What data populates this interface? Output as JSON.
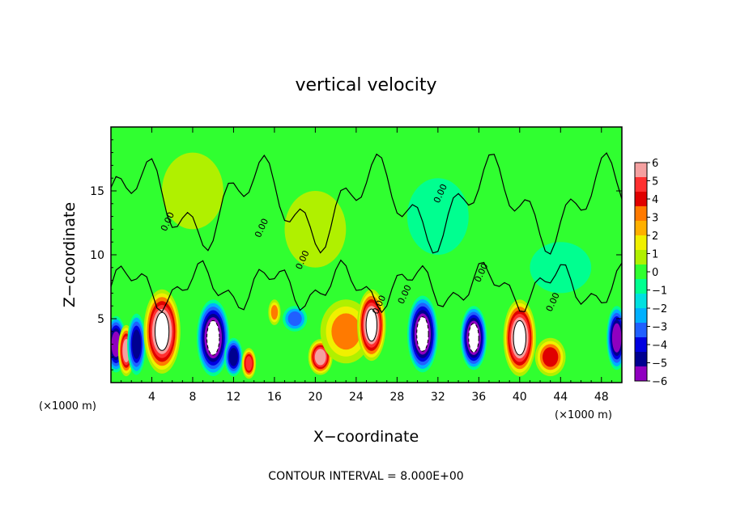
{
  "chart_data": {
    "type": "heatmap",
    "title": "vertical velocity",
    "xlabel": "X−coordinate",
    "ylabel": "Z−coordinate",
    "x_unit_left": "(×1000 m)",
    "x_unit_right": "(×1000 m)",
    "xlim": [
      0,
      50
    ],
    "ylim": [
      0,
      20
    ],
    "x_ticks": [
      4,
      8,
      12,
      16,
      20,
      24,
      28,
      32,
      36,
      40,
      44,
      48
    ],
    "y_ticks": [
      5,
      10,
      15
    ],
    "colorbar": {
      "min": -6,
      "max": 6,
      "ticks": [
        6,
        5,
        4,
        3,
        2,
        1,
        0,
        -1,
        -2,
        -3,
        -4,
        -5,
        -6
      ],
      "tick_labels": [
        "6",
        "5",
        "4",
        "3",
        "2",
        "1",
        "0",
        "−1",
        "−2",
        "−3",
        "−4",
        "−5",
        "−6"
      ],
      "colors": [
        "#f4a0a0",
        "#ff3030",
        "#e00000",
        "#ff7a00",
        "#ffb000",
        "#f0f000",
        "#b0f000",
        "#30ff30",
        "#00ff90",
        "#00e0e0",
        "#00b0ff",
        "#2060ff",
        "#0000e0",
        "#000090",
        "#9000c0"
      ]
    },
    "contour_labels": [
      "0.00",
      "0.00",
      "0.00",
      "0.00",
      "0.00",
      "0.00",
      "0.00",
      "0.00"
    ],
    "footer": "CONTOUR INTERVAL = 8.000E+00",
    "cells": [
      {
        "x": 0.5,
        "z": 3,
        "v": -6,
        "sx": 1.0,
        "sz": 2.2
      },
      {
        "x": 1.5,
        "z": 2.5,
        "v": 6,
        "sx": 0.8,
        "sz": 2.0
      },
      {
        "x": 2.5,
        "z": 3,
        "v": -5,
        "sx": 0.9,
        "sz": 2.4
      },
      {
        "x": 5,
        "z": 4,
        "v": 6.5,
        "sx": 1.8,
        "sz": 3.3
      },
      {
        "x": 10,
        "z": 3.5,
        "v": -6.5,
        "sx": 1.6,
        "sz": 3.0
      },
      {
        "x": 12,
        "z": 2,
        "v": -4.5,
        "sx": 0.9,
        "sz": 1.5
      },
      {
        "x": 13.5,
        "z": 1.5,
        "v": 4.5,
        "sx": 0.7,
        "sz": 1.2
      },
      {
        "x": 16,
        "z": 5.5,
        "v": 3,
        "sx": 0.6,
        "sz": 1.0
      },
      {
        "x": 18,
        "z": 5,
        "v": -2.5,
        "sx": 1.2,
        "sz": 1.0
      },
      {
        "x": 20.5,
        "z": 2,
        "v": 5.5,
        "sx": 1.2,
        "sz": 1.4
      },
      {
        "x": 23,
        "z": 4,
        "v": 3,
        "sx": 2.5,
        "sz": 2.5
      },
      {
        "x": 25.5,
        "z": 4.5,
        "v": 6.5,
        "sx": 1.4,
        "sz": 2.8
      },
      {
        "x": 30.5,
        "z": 3.8,
        "v": -6.5,
        "sx": 1.5,
        "sz": 3.0
      },
      {
        "x": 35.5,
        "z": 3.5,
        "v": -6.5,
        "sx": 1.3,
        "sz": 2.5
      },
      {
        "x": 40,
        "z": 3.5,
        "v": 6.5,
        "sx": 1.6,
        "sz": 3.0
      },
      {
        "x": 43,
        "z": 2,
        "v": 3.5,
        "sx": 1.5,
        "sz": 1.5
      },
      {
        "x": 49.5,
        "z": 3.5,
        "v": -6,
        "sx": 1.0,
        "sz": 2.5
      },
      {
        "x": 20,
        "z": 12,
        "v": 0.5,
        "sx": 3.0,
        "sz": 3.0
      },
      {
        "x": 32,
        "z": 13,
        "v": -0.4,
        "sx": 3.0,
        "sz": 3.0
      },
      {
        "x": 8,
        "z": 15,
        "v": 0.4,
        "sx": 3.0,
        "sz": 3.0
      },
      {
        "x": 44,
        "z": 9,
        "v": -0.5,
        "sx": 3.0,
        "sz": 2.0
      }
    ]
  }
}
